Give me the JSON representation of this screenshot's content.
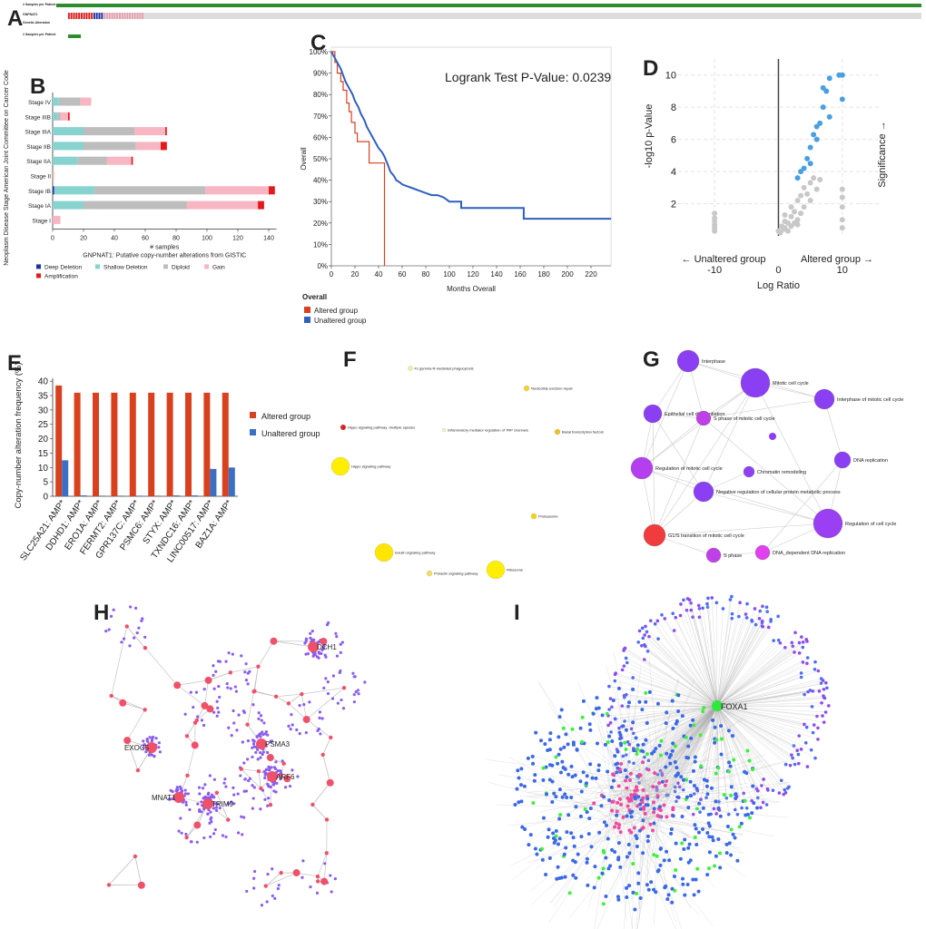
{
  "panel_labels": [
    "A",
    "B",
    "C",
    "D",
    "E",
    "F",
    "G",
    "H",
    "I"
  ],
  "oncoprint": {
    "rows": [
      "# Samples per Patient",
      "GNPNAT1",
      "Genetic Alteration",
      "# Samples per Patient"
    ]
  },
  "chart_data": [
    {
      "type": "bar",
      "orientation": "horizontal",
      "stacked": true,
      "x_label": "# samples",
      "caption": "GNPNAT1: Putative copy-number alterations from GISTIC",
      "y_label": "Neoplasm Disease Stage American Joint Committee on Cancer Code",
      "categories": [
        "Stage IV",
        "Stage IIIB",
        "Stage IIIA",
        "Stage IIB",
        "Stage IIA",
        "Stage II",
        "Stage IB",
        "Stage IA",
        "Stage I"
      ],
      "series": [
        {
          "name": "Deep Deletion",
          "color": "#1f2fa8",
          "values": [
            0,
            0,
            0,
            0,
            0,
            0,
            1,
            0,
            0
          ]
        },
        {
          "name": "Shallow Deletion",
          "color": "#86d3cf",
          "values": [
            4,
            3,
            20,
            20,
            16,
            0,
            26,
            20,
            0
          ]
        },
        {
          "name": "Diploid",
          "color": "#bdbdbd",
          "values": [
            14,
            2,
            33,
            34,
            19,
            0,
            72,
            67,
            0
          ]
        },
        {
          "name": "Gain",
          "color": "#f7b6c2",
          "values": [
            7,
            5,
            20,
            16,
            16,
            1,
            41,
            46,
            5
          ]
        },
        {
          "name": "Amplification",
          "color": "#e3191c",
          "values": [
            0,
            1,
            1,
            4,
            1,
            0,
            4,
            4,
            0
          ]
        }
      ],
      "xlim": [
        0,
        145
      ],
      "xticks": [
        0,
        20,
        40,
        60,
        80,
        100,
        120,
        140
      ]
    },
    {
      "type": "line",
      "annotation": "Logrank Test P-Value: 0.0239",
      "x_label": "Months Overall",
      "y_label": "Overall",
      "legend_title": "Overall",
      "series": [
        {
          "name": "Altered group",
          "color": "#d8401e",
          "x": [
            0,
            3,
            3,
            5,
            5,
            8,
            8,
            10,
            10,
            13,
            13,
            15,
            15,
            17,
            17,
            20,
            20,
            22,
            22,
            32,
            32,
            45,
            45
          ],
          "values": [
            100,
            100,
            95,
            95,
            90,
            90,
            86,
            86,
            82,
            82,
            76,
            76,
            72,
            72,
            67,
            67,
            62,
            62,
            58,
            58,
            48,
            48,
            0
          ]
        },
        {
          "name": "Unaltered group",
          "color": "#2f5fbf",
          "x": [
            0,
            2,
            5,
            8,
            10,
            12,
            15,
            18,
            20,
            23,
            25,
            28,
            30,
            33,
            35,
            38,
            40,
            43,
            45,
            48,
            50,
            53,
            55,
            58,
            60,
            65,
            70,
            75,
            80,
            85,
            90,
            95,
            100,
            105,
            110,
            110,
            125,
            130,
            163,
            163,
            237
          ],
          "values": [
            100,
            98,
            95,
            92,
            89,
            86,
            83,
            80,
            77,
            74,
            71,
            68,
            65,
            62,
            60,
            57,
            55,
            53,
            51,
            47,
            44,
            42,
            40,
            39,
            38,
            37,
            36,
            35,
            34,
            33,
            33,
            32,
            30,
            30,
            30,
            27,
            27,
            27,
            27,
            22,
            22
          ]
        }
      ],
      "xlim": [
        0,
        237
      ],
      "xticks": [
        0,
        20,
        40,
        60,
        80,
        100,
        120,
        140,
        160,
        180,
        200,
        220
      ],
      "ylim": [
        0,
        100
      ],
      "yticks": [
        {
          "value": 0,
          "label": "0%"
        },
        {
          "value": 10,
          "label": "10%"
        },
        {
          "value": 20,
          "label": "20%"
        },
        {
          "value": 30,
          "label": "30%"
        },
        {
          "value": 40,
          "label": "40%"
        },
        {
          "value": 50,
          "label": "50%"
        },
        {
          "value": 60,
          "label": "60%"
        },
        {
          "value": 70,
          "label": "70%"
        },
        {
          "value": 80,
          "label": "80%"
        },
        {
          "value": 90,
          "label": "90%"
        },
        {
          "value": 100,
          "label": "100%"
        }
      ]
    },
    {
      "type": "scatter",
      "x_label": "Log Ratio",
      "y_label": "-log10 p-Value",
      "annotations": [
        "← Unaltered group",
        "Altered group →",
        "Significance →"
      ],
      "series": [
        {
          "color": "#c8c8c8",
          "x": [
            -10,
            -10,
            -10,
            -10,
            -10,
            -10,
            0,
            0.5,
            1,
            1,
            1.5,
            2,
            2,
            2.5,
            3,
            3,
            3.5,
            4,
            4,
            4.5,
            5,
            5,
            5.5,
            6,
            6.5,
            1,
            2,
            3,
            0.3,
            0.8,
            1.5,
            2.5,
            3.5,
            10,
            10,
            10,
            10,
            10
          ],
          "values": [
            0.3,
            0.5,
            0.7,
            0.9,
            1.1,
            1.4,
            0.3,
            0.6,
            0.9,
            1.3,
            0.8,
            1.2,
            1.8,
            1.5,
            2.2,
            1.0,
            2.5,
            1.8,
            3.0,
            2.6,
            3.3,
            2.2,
            3.6,
            2.9,
            3.5,
            0.5,
            0.6,
            0.7,
            0.2,
            0.4,
            0.3,
            0.8,
            1.4,
            0.5,
            1.0,
            1.8,
            2.4,
            2.9
          ]
        },
        {
          "color": "#4a9fe0",
          "x": [
            10,
            10,
            9.5,
            8,
            7.5,
            7,
            6.5,
            6,
            5.5,
            5,
            5,
            4.5,
            4,
            3.5,
            3,
            7,
            8,
            6
          ],
          "values": [
            10,
            8.5,
            10,
            9.8,
            9,
            8,
            7,
            6,
            6.3,
            5.5,
            4.5,
            4.8,
            4.2,
            4.0,
            3.6,
            9.2,
            7.4,
            6.8
          ]
        }
      ],
      "xlim": [
        -16.7,
        16
      ],
      "xticks": [
        -10,
        0,
        10
      ],
      "ylim": [
        0,
        11
      ],
      "yticks": [
        2,
        4,
        6,
        8,
        10
      ],
      "grid": true
    },
    {
      "type": "bar",
      "orientation": "vertical",
      "y_label": "Copy-number alteration frequency (%)",
      "categories": [
        "SLC25A21: AMP*",
        "DDHD1: AMP*",
        "ERO1A: AMP*",
        "FERMT2: AMP*",
        "GPR137C: AMP*",
        "PSMC6: AMP*",
        "STYX: AMP*",
        "TXNDC16: AMP*",
        "LINC00517: AMP*",
        "BAZ1A: AMP*"
      ],
      "series": [
        {
          "name": "Altered group",
          "color": "#d9411e",
          "values": [
            38.5,
            36,
            36,
            36,
            36,
            36,
            36,
            36,
            36,
            36
          ]
        },
        {
          "name": "Unaltered group",
          "color": "#3b6fc4",
          "values": [
            12.5,
            0.3,
            0.2,
            0.2,
            0.2,
            0.2,
            0.3,
            0.3,
            9.5,
            10
          ]
        }
      ],
      "ylim": [
        0,
        41
      ],
      "yticks": [
        0,
        5,
        10,
        15,
        20,
        25,
        30,
        35,
        40
      ],
      "legend": "right"
    }
  ],
  "pathway_network": {
    "nodes": [
      "Fc gamma R-mediated phagocytosis",
      "Nucleotide excision repair",
      "Hippo signaling pathway -multiple species",
      "Inflammatory mediator regulation of TRP channels",
      "Basal transcription factors",
      "Hippo signaling pathway",
      "Proteasome",
      "Insulin signaling pathway",
      "Ribosome",
      "Prolactin signaling pathway"
    ]
  },
  "go_network": {
    "nodes": [
      "Interphase",
      "Mitotic cell cycle",
      "Interphase of mitotic cell cycle",
      "Epithelial cell differentiation",
      "S phase of mitotic cell cycle",
      "DNA replication",
      "Regulation of mitotic cell cycle",
      "Chromatin remodeling",
      "Negative regulation of cellular protein metabolic process",
      "Regulation of cell cycle",
      "G1/S transition of mitotic cell cycle",
      "S phase",
      "DNA_dependent DNA replication"
    ]
  },
  "gene_network": {
    "labels": [
      "DCH1",
      "EXOC5",
      "PSMA3",
      "ARF6",
      "MNAT1",
      "TRIM9"
    ]
  },
  "foxa1_network": {
    "label": "FOXA1"
  }
}
